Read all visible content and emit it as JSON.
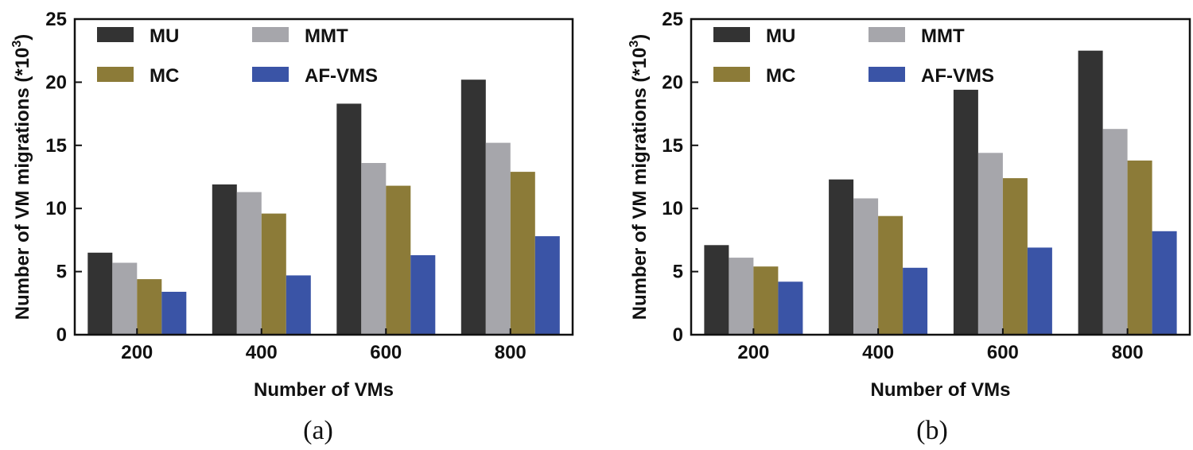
{
  "chart_data": [
    {
      "type": "bar",
      "panel_label": "(a)",
      "xlabel": "Number of VMs",
      "ylabel": "Number of VM migrations (*10",
      "ylabel_exp": "3",
      "ylabel_close": ")",
      "ylim": [
        0,
        25
      ],
      "yticks": [
        0,
        5,
        10,
        15,
        20,
        25
      ],
      "categories": [
        "200",
        "400",
        "600",
        "800"
      ],
      "legend_position": "top-left",
      "series": [
        {
          "name": "MU",
          "color": "#333333",
          "values": [
            6.5,
            11.9,
            18.3,
            20.2
          ]
        },
        {
          "name": "MMT",
          "color": "#a6a6ab",
          "values": [
            5.7,
            11.3,
            13.6,
            15.2
          ]
        },
        {
          "name": "MC",
          "color": "#8c7b38",
          "values": [
            4.4,
            9.6,
            11.8,
            12.9
          ]
        },
        {
          "name": "AF-VMS",
          "color": "#3a54a6",
          "values": [
            3.4,
            4.7,
            6.3,
            7.8
          ]
        }
      ]
    },
    {
      "type": "bar",
      "panel_label": "(b)",
      "xlabel": "Number of VMs",
      "ylabel": "Number of VM migrations (*10",
      "ylabel_exp": "3",
      "ylabel_close": ")",
      "ylim": [
        0,
        25
      ],
      "yticks": [
        0,
        5,
        10,
        15,
        20,
        25
      ],
      "categories": [
        "200",
        "400",
        "600",
        "800"
      ],
      "legend_position": "top-left",
      "series": [
        {
          "name": "MU",
          "color": "#333333",
          "values": [
            7.1,
            12.3,
            19.4,
            22.5
          ]
        },
        {
          "name": "MMT",
          "color": "#a6a6ab",
          "values": [
            6.1,
            10.8,
            14.4,
            16.3
          ]
        },
        {
          "name": "MC",
          "color": "#8c7b38",
          "values": [
            5.4,
            9.4,
            12.4,
            13.8
          ]
        },
        {
          "name": "AF-VMS",
          "color": "#3a54a6",
          "values": [
            4.2,
            5.3,
            6.9,
            8.2
          ]
        }
      ]
    }
  ]
}
